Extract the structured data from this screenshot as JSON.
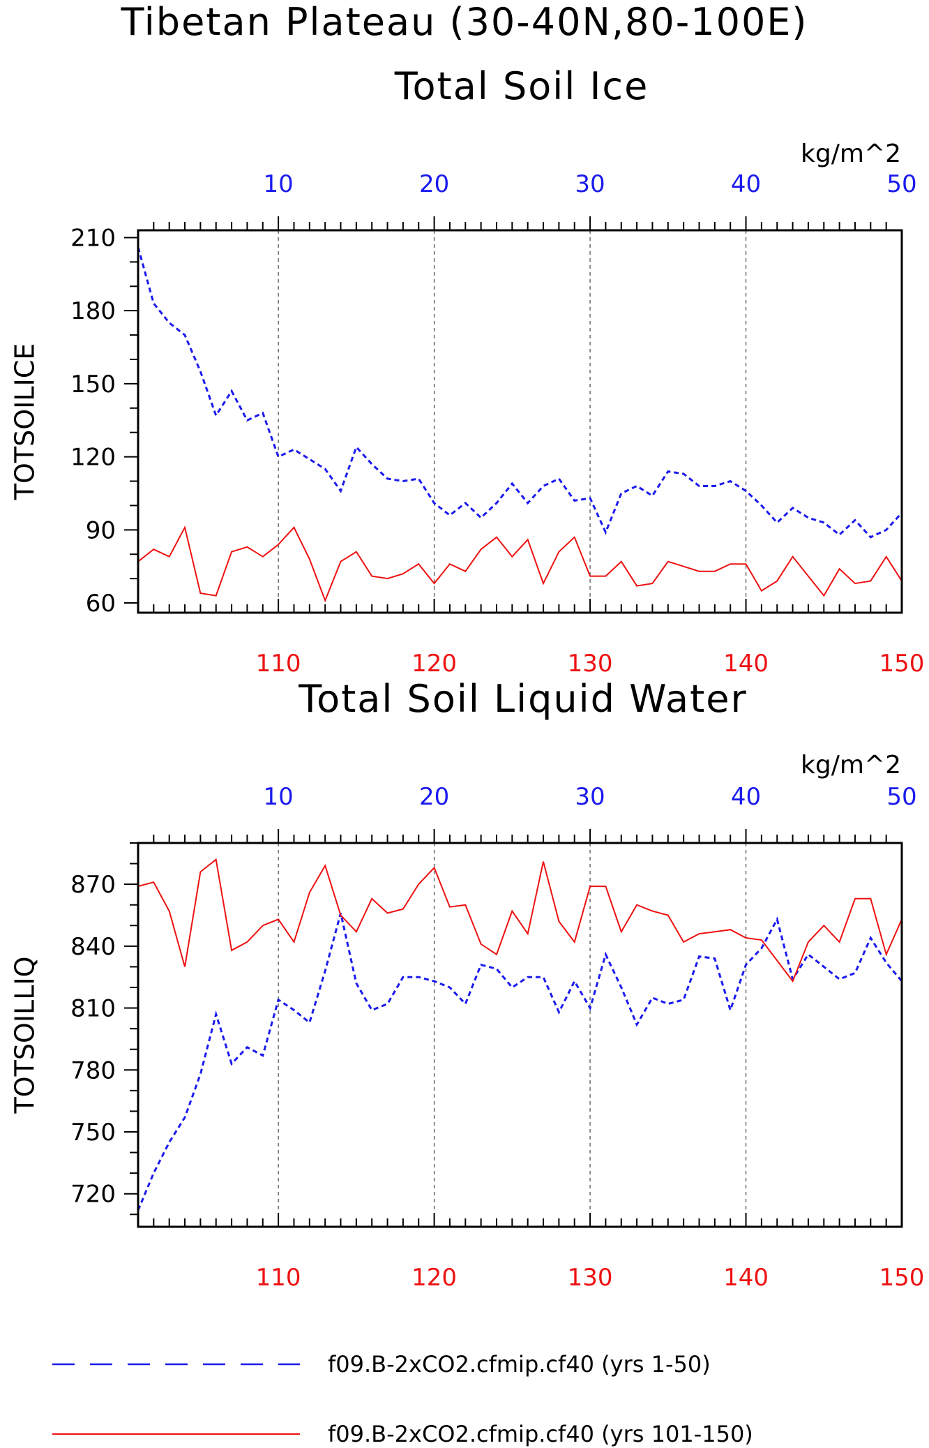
{
  "titles": {
    "main": "Tibetan Plateau (30-40N,80-100E)",
    "panel1": "Total Soil Ice",
    "panel2": "Total Soil Liquid Water"
  },
  "colors": {
    "early": "#1a1aee",
    "late": "#ee1111",
    "grid": "#555555"
  },
  "legend": {
    "early": "f09.B-2xCO2.cfmip.cf40 (yrs 1-50)",
    "late": "f09.B-2xCO2.cfmip.cf40 (yrs 101-150)"
  },
  "chart_data": [
    {
      "type": "line",
      "title": "Total Soil Ice",
      "ylabel": "TOTSOILICE",
      "units": "kg/m^2",
      "top_axis": {
        "min": 1,
        "max": 50,
        "ticks": [
          10,
          20,
          30,
          40,
          50
        ],
        "color": "blue"
      },
      "bottom_axis": {
        "min": 101,
        "max": 150,
        "ticks": [
          110,
          120,
          130,
          140,
          150
        ],
        "color": "red"
      },
      "ylim": [
        56,
        213
      ],
      "yticks": [
        60,
        90,
        120,
        150,
        180,
        210
      ],
      "grid": "vertical dashed at major ticks",
      "series": [
        {
          "axis": "top",
          "style": "dashed",
          "values": [
            206,
            183,
            175,
            170,
            155,
            137,
            147,
            135,
            138,
            120,
            123,
            119,
            115,
            106,
            124,
            117,
            111,
            110,
            111,
            101,
            96,
            101,
            95,
            101,
            109,
            101,
            108,
            111,
            102,
            103,
            89,
            105,
            108,
            104,
            114,
            113,
            108,
            108,
            110,
            106,
            100,
            93,
            99,
            95,
            93,
            88,
            94,
            87,
            90,
            97
          ]
        },
        {
          "axis": "bottom",
          "style": "solid",
          "values": [
            77,
            82,
            79,
            91,
            64,
            63,
            81,
            83,
            79,
            84,
            91,
            78,
            61,
            77,
            81,
            71,
            70,
            72,
            76,
            68,
            76,
            73,
            82,
            87,
            79,
            86,
            68,
            81,
            87,
            71,
            71,
            77,
            67,
            68,
            77,
            75,
            73,
            73,
            76,
            76,
            65,
            69,
            79,
            71,
            63,
            74,
            68,
            69,
            79,
            69
          ]
        }
      ]
    },
    {
      "type": "line",
      "title": "Total Soil Liquid Water",
      "ylabel": "TOTSOILLIQ",
      "units": "kg/m^2",
      "top_axis": {
        "min": 1,
        "max": 50,
        "ticks": [
          10,
          20,
          30,
          40,
          50
        ],
        "color": "blue"
      },
      "bottom_axis": {
        "min": 101,
        "max": 150,
        "ticks": [
          110,
          120,
          130,
          140,
          150
        ],
        "color": "red"
      },
      "ylim": [
        704,
        890
      ],
      "yticks": [
        720,
        750,
        780,
        810,
        840,
        870
      ],
      "grid": "vertical dashed at major ticks",
      "series": [
        {
          "axis": "top",
          "style": "dashed",
          "values": [
            712,
            730,
            745,
            757,
            778,
            807,
            783,
            791,
            787,
            814,
            809,
            803,
            828,
            856,
            822,
            809,
            812,
            825,
            825,
            823,
            820,
            812,
            831,
            829,
            820,
            825,
            825,
            808,
            823,
            810,
            836,
            820,
            802,
            815,
            812,
            814,
            835,
            834,
            809,
            831,
            839,
            853,
            824,
            836,
            830,
            824,
            827,
            844,
            832,
            823
          ]
        },
        {
          "axis": "bottom",
          "style": "solid",
          "values": [
            869,
            871,
            857,
            830,
            876,
            882,
            838,
            842,
            850,
            853,
            842,
            866,
            879,
            855,
            847,
            863,
            856,
            858,
            870,
            878,
            859,
            860,
            841,
            836,
            857,
            846,
            881,
            852,
            842,
            869,
            869,
            847,
            860,
            857,
            855,
            842,
            846,
            847,
            848,
            844,
            843,
            833,
            823,
            842,
            850,
            842,
            863,
            863,
            836,
            853
          ]
        }
      ]
    }
  ]
}
